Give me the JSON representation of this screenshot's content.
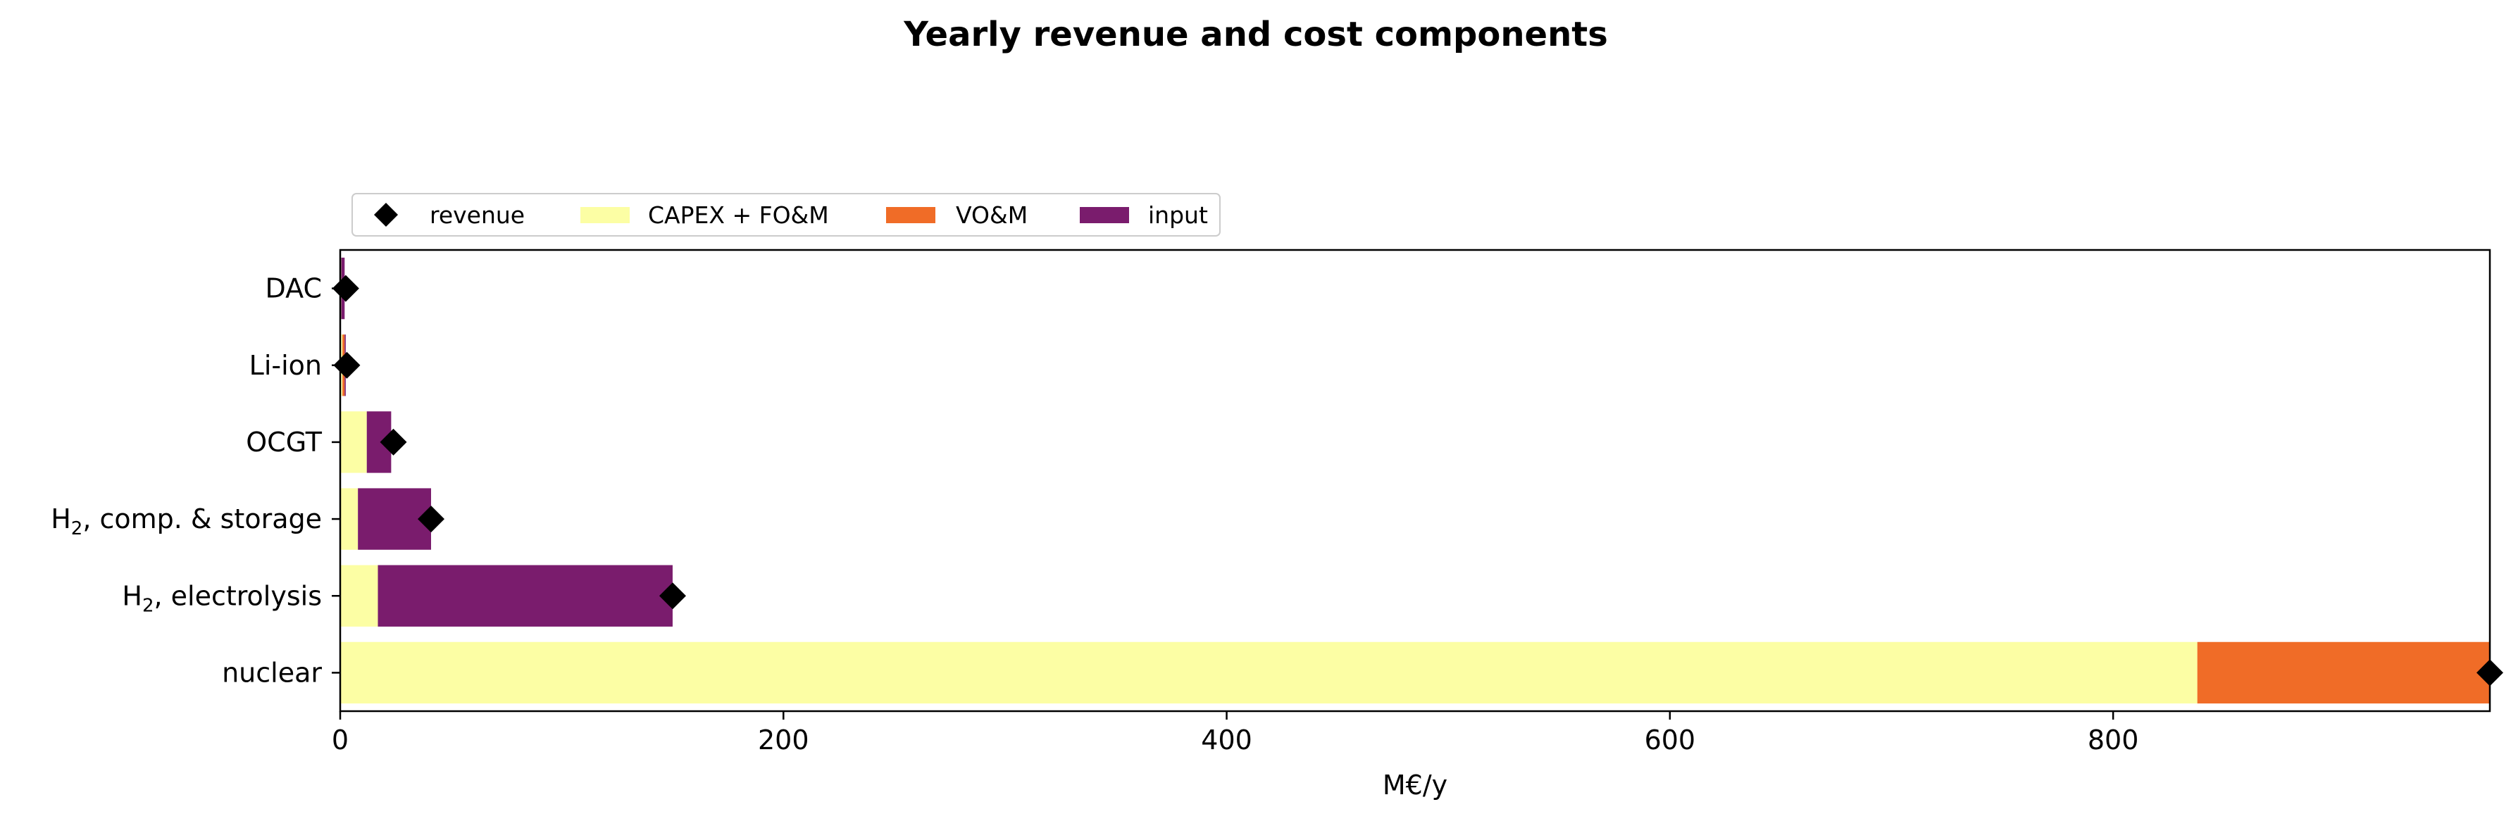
{
  "chart_data": {
    "type": "bar",
    "orientation": "horizontal",
    "stacked": true,
    "title": "Yearly revenue and cost components",
    "xlabel": "M€/y",
    "ylabel": "",
    "xlim": [
      0,
      970
    ],
    "xticks": [
      0,
      200,
      400,
      600,
      800
    ],
    "grid": false,
    "legend_placement": "top-left, above plot",
    "categories": [
      "nuclear",
      "H2, electrolysis",
      "H2, comp. & storage",
      "OCGT",
      "Li-ion",
      "DAC"
    ],
    "category_labels": [
      {
        "main": "nuclear",
        "sub": "",
        "rest": ""
      },
      {
        "main": "H",
        "sub": "2",
        "rest": ", electrolysis"
      },
      {
        "main": "H",
        "sub": "2",
        "rest": ", comp. & storage"
      },
      {
        "main": "OCGT",
        "sub": "",
        "rest": ""
      },
      {
        "main": "Li-ion",
        "sub": "",
        "rest": ""
      },
      {
        "main": "DAC",
        "sub": "",
        "rest": ""
      }
    ],
    "series": [
      {
        "name": "CAPEX + FO&M",
        "color": "#fcfea4",
        "values": [
          838,
          17,
          8,
          12,
          1,
          0.5
        ]
      },
      {
        "name": "VO&M",
        "color": "#f06c27",
        "values": [
          132,
          0,
          0,
          0,
          1,
          0
        ]
      },
      {
        "name": "input",
        "color": "#7a1c6d",
        "values": [
          0,
          133,
          33,
          11,
          0.5,
          1.5
        ]
      }
    ],
    "markers": {
      "name": "revenue",
      "shape": "diamond",
      "color": "#000000",
      "values": [
        970,
        150,
        41,
        24,
        3,
        2.5
      ]
    },
    "legend_order": [
      "revenue",
      "CAPEX + FO&M",
      "VO&M",
      "input"
    ]
  }
}
